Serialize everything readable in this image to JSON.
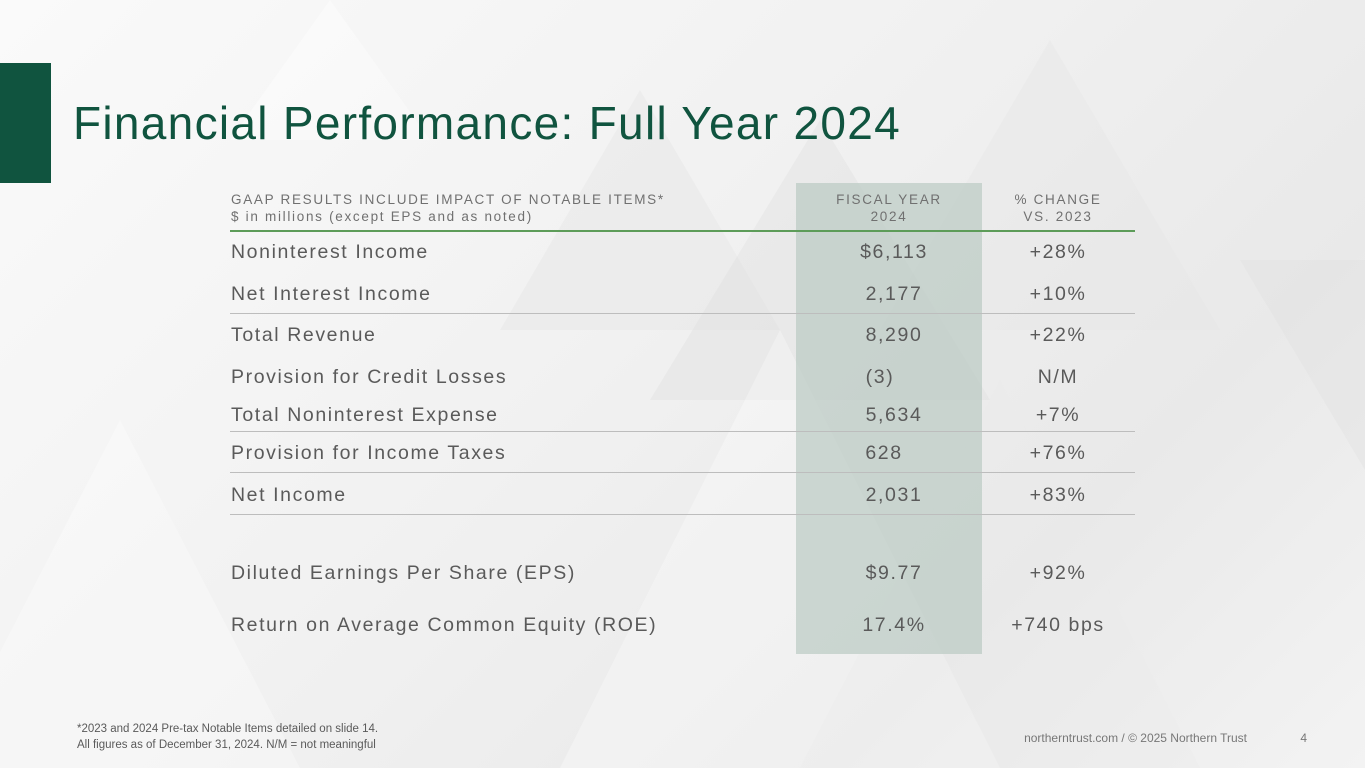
{
  "title": "Financial Performance: Full Year 2024",
  "table": {
    "header_left": [
      "GAAP RESULTS INCLUDE IMPACT OF NOTABLE ITEMS*",
      "$ in millions (except EPS and as noted)"
    ],
    "header_fiscal": [
      "FISCAL YEAR",
      "2024"
    ],
    "header_change": [
      "% CHANGE",
      "VS. 2023"
    ],
    "rows": [
      {
        "label": "Noninterest Income",
        "value": "$6,113",
        "change": "+28%"
      },
      {
        "label": "Net Interest Income",
        "value": "2,177",
        "change": "+10%"
      },
      {
        "label": "Total Revenue",
        "value": "8,290",
        "change": "+22%"
      },
      {
        "label": "Provision for Credit Losses",
        "value": "(3)",
        "change": "N/M"
      },
      {
        "label": "Total Noninterest Expense",
        "value": "5,634",
        "change": "+7%"
      },
      {
        "label": "Provision for Income Taxes",
        "value": "628",
        "change": "+76%"
      },
      {
        "label": "Net Income",
        "value": "2,031",
        "change": "+83%"
      },
      {
        "label": "Diluted Earnings Per Share (EPS)",
        "value": "$9.77",
        "change": "+92%"
      },
      {
        "label": "Return on Average Common Equity (ROE)",
        "value": "17.4%",
        "change": "+740 bps"
      }
    ]
  },
  "footnotes": [
    "*2023 and 2024 Pre-tax Notable Items detailed on slide 14.",
    "All figures as of December 31, 2024. N/M = not meaningful"
  ],
  "footer": "northerntrust.com / © 2025 Northern Trust",
  "page_number": "4",
  "colors": {
    "brand_green": "#10543f",
    "rule_green": "#5d9c59",
    "highlight": "#b8c9c1"
  }
}
